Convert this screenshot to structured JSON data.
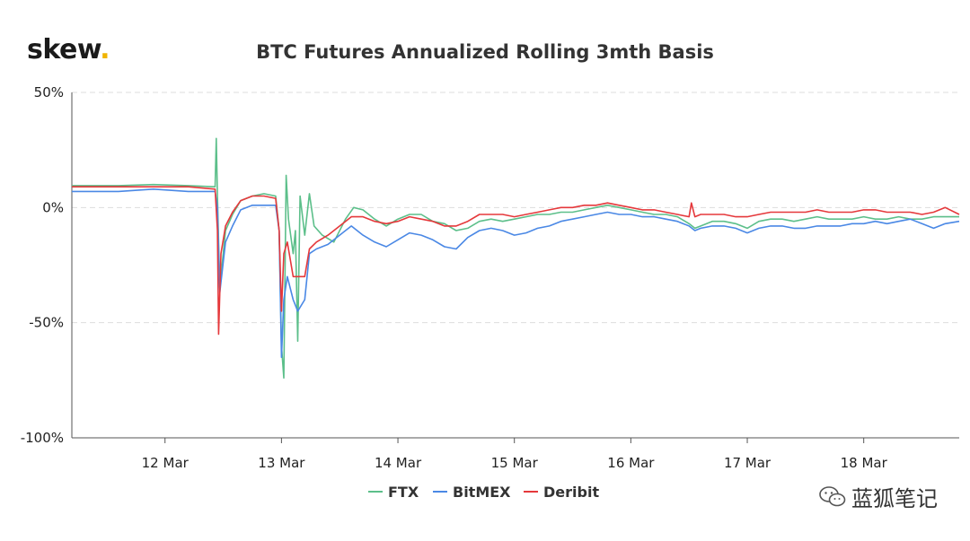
{
  "logo": {
    "text": "skew",
    "dot": "."
  },
  "watermark": {
    "text": "蓝狐笔记",
    "icon": "wechat-icon"
  },
  "chart_data": {
    "type": "line",
    "title": "BTC Futures Annualized Rolling 3mth Basis",
    "xlabel": "",
    "ylabel": "",
    "x_ticks": [
      "12 Mar",
      "13 Mar",
      "14 Mar",
      "15 Mar",
      "16 Mar",
      "17 Mar",
      "18 Mar"
    ],
    "y_ticks": [
      "50%",
      "0%",
      "-50%",
      "-100%"
    ],
    "ylim": [
      -100,
      50
    ],
    "xlim": [
      11.2,
      18.82
    ],
    "grid": "horizontal dashed",
    "legend_position": "bottom-center",
    "series": [
      {
        "name": "FTX",
        "color": "#5cbf8a",
        "points": [
          [
            11.2,
            9.5
          ],
          [
            11.6,
            9.5
          ],
          [
            11.9,
            10
          ],
          [
            12.2,
            9.5
          ],
          [
            12.43,
            9
          ],
          [
            12.44,
            30
          ],
          [
            12.45,
            5
          ],
          [
            12.47,
            -35
          ],
          [
            12.52,
            -10
          ],
          [
            12.58,
            -3
          ],
          [
            12.65,
            3
          ],
          [
            12.75,
            5
          ],
          [
            12.85,
            6
          ],
          [
            12.95,
            5
          ],
          [
            12.98,
            -10
          ],
          [
            13.0,
            -60
          ],
          [
            13.02,
            -74
          ],
          [
            13.04,
            14
          ],
          [
            13.06,
            -5
          ],
          [
            13.1,
            -20
          ],
          [
            13.12,
            -10
          ],
          [
            13.14,
            -58
          ],
          [
            13.16,
            5
          ],
          [
            13.2,
            -12
          ],
          [
            13.24,
            6
          ],
          [
            13.28,
            -8
          ],
          [
            13.35,
            -12
          ],
          [
            13.45,
            -15
          ],
          [
            13.55,
            -5
          ],
          [
            13.62,
            0
          ],
          [
            13.7,
            -1
          ],
          [
            13.8,
            -5
          ],
          [
            13.9,
            -8
          ],
          [
            14.0,
            -5
          ],
          [
            14.1,
            -3
          ],
          [
            14.2,
            -3
          ],
          [
            14.3,
            -6
          ],
          [
            14.4,
            -7
          ],
          [
            14.5,
            -10
          ],
          [
            14.6,
            -9
          ],
          [
            14.7,
            -6
          ],
          [
            14.8,
            -5
          ],
          [
            14.9,
            -6
          ],
          [
            15.0,
            -5
          ],
          [
            15.1,
            -4
          ],
          [
            15.2,
            -3
          ],
          [
            15.3,
            -3
          ],
          [
            15.4,
            -2
          ],
          [
            15.5,
            -2
          ],
          [
            15.6,
            -1
          ],
          [
            15.7,
            0
          ],
          [
            15.8,
            1
          ],
          [
            15.9,
            0
          ],
          [
            16.0,
            -1
          ],
          [
            16.1,
            -2
          ],
          [
            16.2,
            -3
          ],
          [
            16.3,
            -3
          ],
          [
            16.4,
            -4
          ],
          [
            16.5,
            -7
          ],
          [
            16.55,
            -9
          ],
          [
            16.6,
            -8
          ],
          [
            16.7,
            -6
          ],
          [
            16.8,
            -6
          ],
          [
            16.9,
            -7
          ],
          [
            17.0,
            -9
          ],
          [
            17.1,
            -6
          ],
          [
            17.2,
            -5
          ],
          [
            17.3,
            -5
          ],
          [
            17.4,
            -6
          ],
          [
            17.5,
            -5
          ],
          [
            17.6,
            -4
          ],
          [
            17.7,
            -5
          ],
          [
            17.8,
            -5
          ],
          [
            17.9,
            -5
          ],
          [
            18.0,
            -4
          ],
          [
            18.1,
            -5
          ],
          [
            18.2,
            -5
          ],
          [
            18.3,
            -4
          ],
          [
            18.4,
            -5
          ],
          [
            18.5,
            -5
          ],
          [
            18.6,
            -4
          ],
          [
            18.7,
            -4
          ],
          [
            18.82,
            -4
          ]
        ]
      },
      {
        "name": "BitMEX",
        "color": "#4a88e5",
        "points": [
          [
            11.2,
            7
          ],
          [
            11.6,
            7
          ],
          [
            11.9,
            8
          ],
          [
            12.2,
            7
          ],
          [
            12.43,
            7
          ],
          [
            12.45,
            0
          ],
          [
            12.47,
            -37
          ],
          [
            12.52,
            -15
          ],
          [
            12.58,
            -8
          ],
          [
            12.65,
            -1
          ],
          [
            12.75,
            1
          ],
          [
            12.85,
            1
          ],
          [
            12.95,
            1
          ],
          [
            12.98,
            -10
          ],
          [
            13.0,
            -65
          ],
          [
            13.02,
            -40
          ],
          [
            13.05,
            -30
          ],
          [
            13.1,
            -40
          ],
          [
            13.14,
            -45
          ],
          [
            13.2,
            -40
          ],
          [
            13.24,
            -20
          ],
          [
            13.3,
            -18
          ],
          [
            13.4,
            -16
          ],
          [
            13.5,
            -12
          ],
          [
            13.6,
            -8
          ],
          [
            13.7,
            -12
          ],
          [
            13.8,
            -15
          ],
          [
            13.9,
            -17
          ],
          [
            14.0,
            -14
          ],
          [
            14.1,
            -11
          ],
          [
            14.2,
            -12
          ],
          [
            14.3,
            -14
          ],
          [
            14.4,
            -17
          ],
          [
            14.5,
            -18
          ],
          [
            14.6,
            -13
          ],
          [
            14.7,
            -10
          ],
          [
            14.8,
            -9
          ],
          [
            14.9,
            -10
          ],
          [
            15.0,
            -12
          ],
          [
            15.1,
            -11
          ],
          [
            15.2,
            -9
          ],
          [
            15.3,
            -8
          ],
          [
            15.4,
            -6
          ],
          [
            15.5,
            -5
          ],
          [
            15.6,
            -4
          ],
          [
            15.7,
            -3
          ],
          [
            15.8,
            -2
          ],
          [
            15.9,
            -3
          ],
          [
            16.0,
            -3
          ],
          [
            16.1,
            -4
          ],
          [
            16.2,
            -4
          ],
          [
            16.3,
            -5
          ],
          [
            16.4,
            -6
          ],
          [
            16.5,
            -8
          ],
          [
            16.55,
            -10
          ],
          [
            16.6,
            -9
          ],
          [
            16.7,
            -8
          ],
          [
            16.8,
            -8
          ],
          [
            16.9,
            -9
          ],
          [
            17.0,
            -11
          ],
          [
            17.1,
            -9
          ],
          [
            17.2,
            -8
          ],
          [
            17.3,
            -8
          ],
          [
            17.4,
            -9
          ],
          [
            17.5,
            -9
          ],
          [
            17.6,
            -8
          ],
          [
            17.7,
            -8
          ],
          [
            17.8,
            -8
          ],
          [
            17.9,
            -7
          ],
          [
            18.0,
            -7
          ],
          [
            18.1,
            -6
          ],
          [
            18.2,
            -7
          ],
          [
            18.3,
            -6
          ],
          [
            18.4,
            -5
          ],
          [
            18.5,
            -7
          ],
          [
            18.6,
            -9
          ],
          [
            18.7,
            -7
          ],
          [
            18.82,
            -6
          ]
        ]
      },
      {
        "name": "Deribit",
        "color": "#e5383b",
        "points": [
          [
            11.2,
            9
          ],
          [
            11.6,
            9
          ],
          [
            11.9,
            9
          ],
          [
            12.2,
            9
          ],
          [
            12.43,
            8
          ],
          [
            12.45,
            -10
          ],
          [
            12.46,
            -55
          ],
          [
            12.48,
            -20
          ],
          [
            12.52,
            -8
          ],
          [
            12.58,
            -2
          ],
          [
            12.65,
            3
          ],
          [
            12.75,
            5
          ],
          [
            12.85,
            5
          ],
          [
            12.95,
            4
          ],
          [
            12.98,
            -10
          ],
          [
            13.0,
            -45
          ],
          [
            13.02,
            -20
          ],
          [
            13.05,
            -15
          ],
          [
            13.1,
            -30
          ],
          [
            13.14,
            -30
          ],
          [
            13.2,
            -30
          ],
          [
            13.24,
            -18
          ],
          [
            13.3,
            -15
          ],
          [
            13.4,
            -12
          ],
          [
            13.5,
            -8
          ],
          [
            13.6,
            -4
          ],
          [
            13.7,
            -4
          ],
          [
            13.8,
            -6
          ],
          [
            13.9,
            -7
          ],
          [
            14.0,
            -6
          ],
          [
            14.1,
            -4
          ],
          [
            14.2,
            -5
          ],
          [
            14.3,
            -6
          ],
          [
            14.4,
            -8
          ],
          [
            14.5,
            -8
          ],
          [
            14.6,
            -6
          ],
          [
            14.7,
            -3
          ],
          [
            14.8,
            -3
          ],
          [
            14.9,
            -3
          ],
          [
            15.0,
            -4
          ],
          [
            15.1,
            -3
          ],
          [
            15.2,
            -2
          ],
          [
            15.3,
            -1
          ],
          [
            15.4,
            0
          ],
          [
            15.5,
            0
          ],
          [
            15.6,
            1
          ],
          [
            15.7,
            1
          ],
          [
            15.8,
            2
          ],
          [
            15.9,
            1
          ],
          [
            16.0,
            0
          ],
          [
            16.1,
            -1
          ],
          [
            16.2,
            -1
          ],
          [
            16.3,
            -2
          ],
          [
            16.4,
            -3
          ],
          [
            16.5,
            -4
          ],
          [
            16.52,
            2
          ],
          [
            16.55,
            -4
          ],
          [
            16.6,
            -3
          ],
          [
            16.7,
            -3
          ],
          [
            16.8,
            -3
          ],
          [
            16.9,
            -4
          ],
          [
            17.0,
            -4
          ],
          [
            17.1,
            -3
          ],
          [
            17.2,
            -2
          ],
          [
            17.3,
            -2
          ],
          [
            17.4,
            -2
          ],
          [
            17.5,
            -2
          ],
          [
            17.6,
            -1
          ],
          [
            17.7,
            -2
          ],
          [
            17.8,
            -2
          ],
          [
            17.9,
            -2
          ],
          [
            18.0,
            -1
          ],
          [
            18.1,
            -1
          ],
          [
            18.2,
            -2
          ],
          [
            18.3,
            -2
          ],
          [
            18.4,
            -2
          ],
          [
            18.5,
            -3
          ],
          [
            18.6,
            -2
          ],
          [
            18.7,
            0
          ],
          [
            18.82,
            -3
          ]
        ]
      }
    ]
  }
}
